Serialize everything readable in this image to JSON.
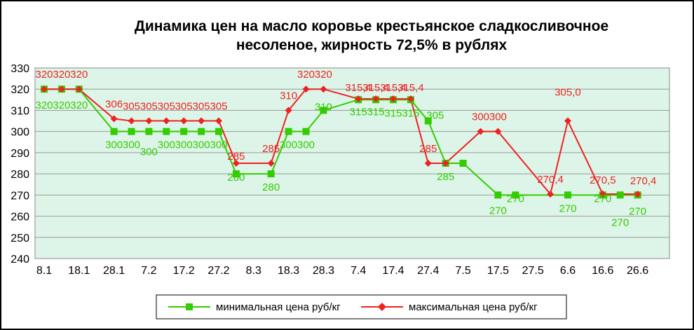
{
  "chart_data": {
    "type": "line",
    "title_lines": [
      "Динамика цен на масло коровье крестьянское  сладкосливочное",
      "несоленое, жирность 72,5%  в рублях"
    ],
    "xlabel": "",
    "ylabel": "",
    "ylim": [
      240,
      330
    ],
    "yticks": [
      240,
      250,
      260,
      270,
      280,
      290,
      300,
      310,
      320,
      330
    ],
    "x": [
      "8.1",
      "13.1",
      "18.1",
      "23.1",
      "28.1",
      "2.2",
      "7.2",
      "12.2",
      "17.2",
      "22.2",
      "27.2",
      "3.3",
      "8.3",
      "13.3",
      "18.3",
      "23.3",
      "28.3",
      "2.4",
      "7.4",
      "12.4",
      "17.4",
      "22.4",
      "27.4",
      "2.5",
      "7.5",
      "12.5",
      "17.5",
      "22.5",
      "27.5",
      "1.6",
      "6.6",
      "11.6",
      "16.6",
      "21.6",
      "26.6",
      "1.7"
    ],
    "xtick_labels": [
      "8.1",
      "",
      "18.1",
      "",
      "28.1",
      "",
      "7.2",
      "",
      "17.2",
      "",
      "27.2",
      "",
      "8.3",
      "",
      "18.3",
      "",
      "28.3",
      "",
      "7.4",
      "",
      "17.4",
      "",
      "27.4",
      "",
      "7.5",
      "",
      "17.5",
      "",
      "27.5",
      "",
      "6.6",
      "",
      "16.6",
      "",
      "26.6",
      ""
    ],
    "grid": "horizontal",
    "legend_position": "bottom",
    "series": [
      {
        "name": "минимальная цена руб/кг",
        "color": "#33cc00",
        "marker": "square",
        "points": [
          {
            "x": "8.1",
            "y": 320,
            "label": "320"
          },
          {
            "x": "13.1",
            "y": 320,
            "label": "320"
          },
          {
            "x": "18.1",
            "y": 320,
            "label": "320"
          },
          {
            "x": "28.1",
            "y": 300,
            "label": "300"
          },
          {
            "x": "2.2",
            "y": 300,
            "label": "300"
          },
          {
            "x": "7.2",
            "y": 300,
            "label": "300"
          },
          {
            "x": "12.2",
            "y": 300,
            "label": "300"
          },
          {
            "x": "17.2",
            "y": 300,
            "label": "300"
          },
          {
            "x": "22.2",
            "y": 300,
            "label": "300"
          },
          {
            "x": "27.2",
            "y": 300,
            "label": "300"
          },
          {
            "x": "3.3",
            "y": 280,
            "label": "280"
          },
          {
            "x": "13.3",
            "y": 280,
            "label": "280"
          },
          {
            "x": "18.3",
            "y": 300,
            "label": "300"
          },
          {
            "x": "23.3",
            "y": 300,
            "label": "300"
          },
          {
            "x": "28.3",
            "y": 310,
            "label": "310"
          },
          {
            "x": "7.4",
            "y": 315,
            "label": "315"
          },
          {
            "x": "12.4",
            "y": 315,
            "label": "315"
          },
          {
            "x": "17.4",
            "y": 315,
            "label": "315"
          },
          {
            "x": "22.4",
            "y": 315,
            "label": "315"
          },
          {
            "x": "27.4",
            "y": 305,
            "label": "305"
          },
          {
            "x": "2.5",
            "y": 285,
            "label": "285"
          },
          {
            "x": "7.5",
            "y": 285,
            "label": ""
          },
          {
            "x": "17.5",
            "y": 270,
            "label": "270"
          },
          {
            "x": "22.5",
            "y": 270,
            "label": "270"
          },
          {
            "x": "6.6",
            "y": 270,
            "label": "270"
          },
          {
            "x": "16.6",
            "y": 270,
            "label": "270"
          },
          {
            "x": "21.6",
            "y": 270,
            "label": "270"
          },
          {
            "x": "26.6",
            "y": 270,
            "label": "270"
          }
        ]
      },
      {
        "name": "максимальная цена руб/кг",
        "color": "#ee2222",
        "marker": "diamond",
        "points": [
          {
            "x": "8.1",
            "y": 320,
            "label": "320"
          },
          {
            "x": "13.1",
            "y": 320,
            "label": "320"
          },
          {
            "x": "18.1",
            "y": 320,
            "label": "320"
          },
          {
            "x": "28.1",
            "y": 306,
            "label": "306"
          },
          {
            "x": "2.2",
            "y": 305,
            "label": "305"
          },
          {
            "x": "7.2",
            "y": 305,
            "label": "305"
          },
          {
            "x": "12.2",
            "y": 305,
            "label": "305"
          },
          {
            "x": "17.2",
            "y": 305,
            "label": "305"
          },
          {
            "x": "22.2",
            "y": 305,
            "label": "305"
          },
          {
            "x": "27.2",
            "y": 305,
            "label": "305"
          },
          {
            "x": "3.3",
            "y": 285,
            "label": "285"
          },
          {
            "x": "13.3",
            "y": 285,
            "label": "285"
          },
          {
            "x": "18.3",
            "y": 310,
            "label": "310"
          },
          {
            "x": "23.3",
            "y": 320,
            "label": "320"
          },
          {
            "x": "28.3",
            "y": 320,
            "label": "320"
          },
          {
            "x": "7.4",
            "y": 315.4,
            "label": "315,4"
          },
          {
            "x": "12.4",
            "y": 315.4,
            "label": "315,4"
          },
          {
            "x": "17.4",
            "y": 315.4,
            "label": "315,4"
          },
          {
            "x": "22.4",
            "y": 315.4,
            "label": "315,4"
          },
          {
            "x": "27.4",
            "y": 285,
            "label": "285"
          },
          {
            "x": "2.5",
            "y": 285,
            "label": ""
          },
          {
            "x": "12.5",
            "y": 300,
            "label": "300"
          },
          {
            "x": "17.5",
            "y": 300,
            "label": "300"
          },
          {
            "x": "1.6",
            "y": 270.4,
            "label": "270,4"
          },
          {
            "x": "6.6",
            "y": 305,
            "label": "305,0"
          },
          {
            "x": "16.6",
            "y": 270.5,
            "label": "270,5"
          },
          {
            "x": "26.6",
            "y": 270.4,
            "label": "270,4"
          }
        ]
      }
    ]
  }
}
